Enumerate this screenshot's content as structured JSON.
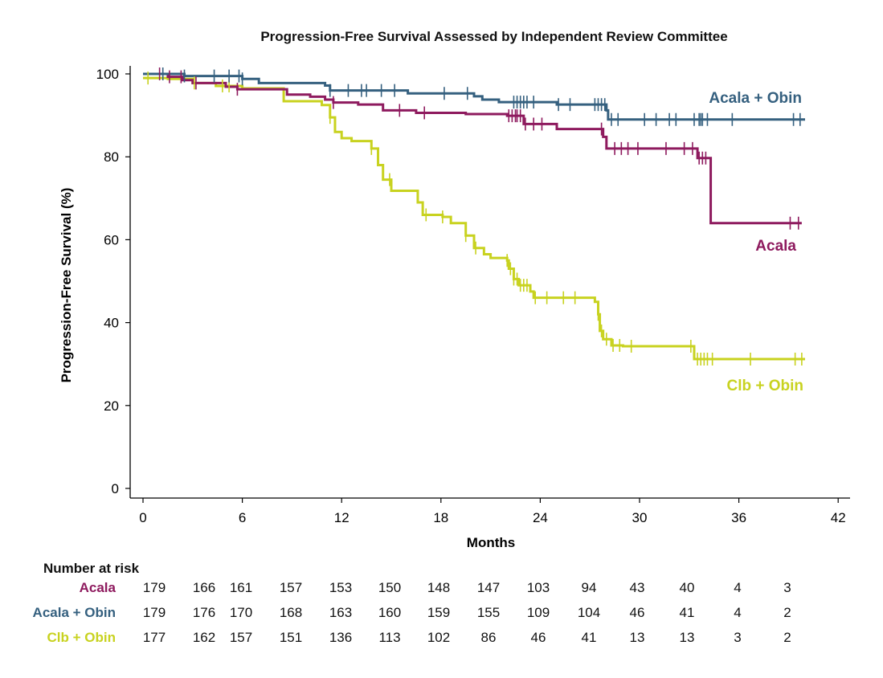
{
  "chart_data": {
    "type": "line",
    "title": "Progression-Free Survival Assessed by Independent Review Committee",
    "xlabel": "Months",
    "ylabel": "Progression-Free Survival (%)",
    "xlim": [
      0,
      42
    ],
    "ylim": [
      0,
      100
    ],
    "xticks": [
      0,
      6,
      12,
      18,
      24,
      30,
      36,
      42
    ],
    "yticks": [
      0,
      20,
      40,
      60,
      80,
      100
    ],
    "grid": false,
    "series": [
      {
        "name": "Acala + Obin",
        "color": "#35607F",
        "steps": [
          [
            0,
            100
          ],
          [
            2.5,
            99.5
          ],
          [
            6,
            98.8
          ],
          [
            7,
            97.8
          ],
          [
            11,
            97.2
          ],
          [
            11.3,
            96
          ],
          [
            16,
            95.3
          ],
          [
            20,
            94.6
          ],
          [
            20.5,
            93.8
          ],
          [
            21.5,
            93.2
          ],
          [
            25,
            92.6
          ],
          [
            28,
            91.2
          ],
          [
            28.1,
            89
          ],
          [
            40,
            89
          ]
        ],
        "censors": [
          1.2,
          2.5,
          4.3,
          5.2,
          5.8,
          6,
          11.3,
          12.4,
          13.2,
          13.5,
          14.4,
          15.2,
          18.2,
          19.6,
          22.4,
          22.6,
          22.8,
          23,
          23.2,
          23.6,
          25.1,
          25.8,
          27.3,
          27.5,
          27.7,
          27.9,
          28.3,
          28.7,
          30.3,
          31,
          31.8,
          32.2,
          33.3,
          33.6,
          33.7,
          33.8,
          34.1,
          35.6,
          39.3,
          39.7
        ]
      },
      {
        "name": "Acala",
        "color": "#8E1A5E",
        "steps": [
          [
            0,
            100
          ],
          [
            1.5,
            99.3
          ],
          [
            2.4,
            98.5
          ],
          [
            3,
            97.8
          ],
          [
            5,
            96.9
          ],
          [
            5.7,
            96.3
          ],
          [
            8.7,
            95
          ],
          [
            10.1,
            94.5
          ],
          [
            11,
            93.8
          ],
          [
            11.5,
            93.1
          ],
          [
            13,
            92.6
          ],
          [
            14.5,
            91.2
          ],
          [
            16.5,
            90.6
          ],
          [
            19.5,
            90.3
          ],
          [
            22,
            89.9
          ],
          [
            23,
            87.9
          ],
          [
            25,
            86.7
          ],
          [
            27.8,
            84.8
          ],
          [
            28,
            82
          ],
          [
            33.5,
            79.7
          ],
          [
            34.3,
            64
          ],
          [
            39.8,
            64
          ]
        ],
        "censors": [
          1,
          1.6,
          2.3,
          3.2,
          5.7,
          11.5,
          15.5,
          17,
          22.1,
          22.3,
          22.5,
          22.6,
          22.8,
          23.1,
          23.6,
          24.1,
          27.7,
          28.5,
          28.9,
          29.3,
          29.9,
          31.6,
          32.7,
          33.2,
          33.6,
          33.8,
          34,
          39.1,
          39.6
        ]
      },
      {
        "name": "Clb + Obin",
        "color": "#C8D21F",
        "steps": [
          [
            0,
            99
          ],
          [
            1.5,
            98.8
          ],
          [
            3,
            97.8
          ],
          [
            4.4,
            97.1
          ],
          [
            6,
            96.5
          ],
          [
            8.5,
            93.4
          ],
          [
            10.8,
            92.5
          ],
          [
            11.3,
            89.5
          ],
          [
            11.6,
            86
          ],
          [
            12,
            84.5
          ],
          [
            12.6,
            83.8
          ],
          [
            13.8,
            82
          ],
          [
            14.2,
            78
          ],
          [
            14.5,
            74.5
          ],
          [
            15,
            71.8
          ],
          [
            16.6,
            69
          ],
          [
            16.9,
            66
          ],
          [
            18.1,
            65.5
          ],
          [
            18.6,
            64
          ],
          [
            19.5,
            61
          ],
          [
            20,
            58
          ],
          [
            20.6,
            56.5
          ],
          [
            21,
            55.6
          ],
          [
            22,
            55
          ],
          [
            22.1,
            53
          ],
          [
            22.4,
            50.5
          ],
          [
            22.7,
            49
          ],
          [
            23.4,
            47.5
          ],
          [
            23.6,
            46
          ],
          [
            27.3,
            45
          ],
          [
            27.5,
            42
          ],
          [
            27.6,
            38
          ],
          [
            27.8,
            36
          ],
          [
            28.3,
            34.5
          ],
          [
            29,
            34.3
          ],
          [
            33.3,
            31.2
          ],
          [
            40,
            31.2
          ]
        ],
        "censors": [
          0.3,
          3.1,
          4.8,
          5.2,
          11.3,
          13.8,
          14.9,
          17.1,
          18.1,
          19.5,
          20.1,
          22,
          22.2,
          22.4,
          22.6,
          22.8,
          23,
          23.2,
          23.7,
          24.4,
          25.4,
          26.1,
          27.5,
          27.7,
          28,
          28.4,
          28.8,
          29.5,
          33.1,
          33.5,
          33.7,
          33.9,
          34.1,
          34.4,
          36.7,
          39.4,
          39.8
        ]
      }
    ],
    "series_labels": [
      {
        "text": "Acala + Obin",
        "color": "#35607F"
      },
      {
        "text": "Acala",
        "color": "#8E1A5E"
      },
      {
        "text": "Clb + Obin",
        "color": "#C8D21F"
      }
    ],
    "risk_table": {
      "header": "Number at risk",
      "rows": [
        {
          "label": "Acala",
          "color": "#8E1A5E",
          "values": [
            "179",
            "166",
            "161",
            "157",
            "153",
            "150",
            "148",
            "147",
            "103",
            "94",
            "43",
            "40",
            "4",
            "3"
          ]
        },
        {
          "label": "Acala + Obin",
          "color": "#35607F",
          "values": [
            "179",
            "176",
            "170",
            "168",
            "163",
            "160",
            "159",
            "155",
            "109",
            "104",
            "46",
            "41",
            "4",
            "2"
          ]
        },
        {
          "label": "Clb + Obin",
          "color": "#C8D21F",
          "values": [
            "177",
            "162",
            "157",
            "151",
            "136",
            "113",
            "102",
            "86",
            "46",
            "41",
            "13",
            "13",
            "3",
            "2"
          ]
        }
      ]
    }
  }
}
